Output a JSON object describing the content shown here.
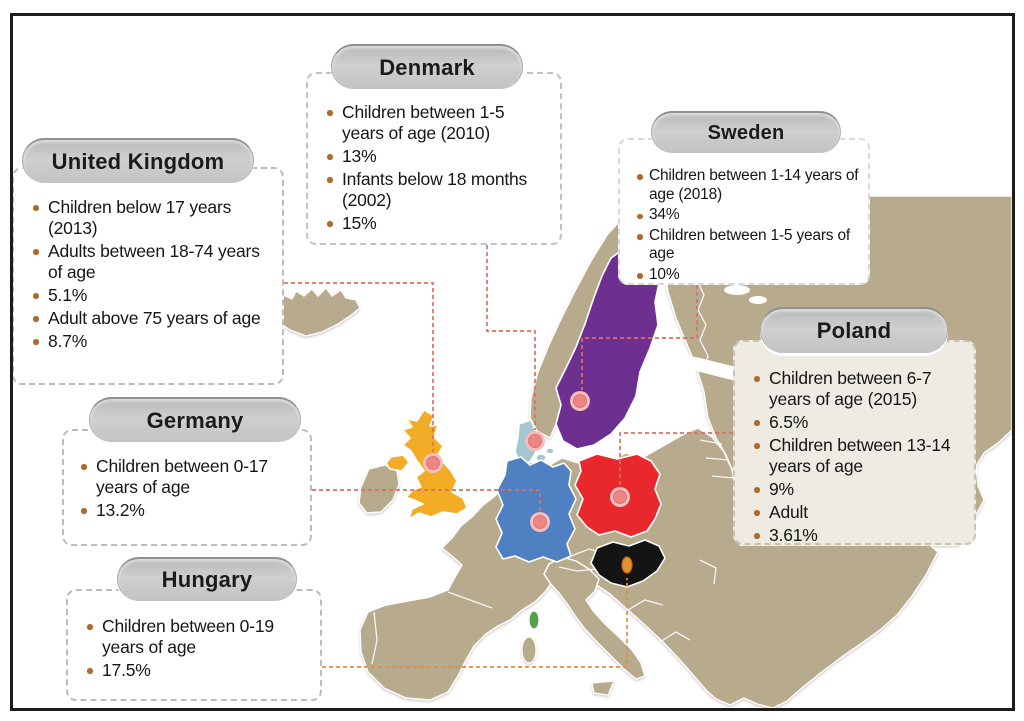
{
  "figure": {
    "background": "#ffffff",
    "frame_border_color": "#1c1c1c"
  },
  "map": {
    "colors": {
      "land": "#b8aa8c",
      "sea": "#ffffff",
      "country_border": "#ffffff",
      "united_kingdom": "#f3ac25",
      "denmark": "#a3c6d0",
      "sweden": "#6d2f90",
      "germany": "#4f80c1",
      "poland": "#e8282c",
      "hungary": "#141414",
      "corsica": "#55a04a"
    },
    "marker": {
      "ring": "#f6bdbd",
      "fill": "#ee8585",
      "edge": "#e07575",
      "hungary_fill": "#e8922f",
      "hungary_edge": "#b96a15"
    },
    "connector": {
      "default": "#dd6f61",
      "hungary": "#dc9146"
    }
  },
  "callouts": [
    {
      "id": "united-kingdom",
      "title": "United Kingdom",
      "items": [
        "Children below 17 years (2013)",
        "Adults between 18-74 years of age",
        "5.1%",
        "Adult above 75 years of age",
        "8.7%"
      ]
    },
    {
      "id": "denmark",
      "title": "Denmark",
      "items": [
        "Children between 1-5 years of age (2010)",
        "13%",
        "Infants below 18 months (2002)",
        "15%"
      ]
    },
    {
      "id": "sweden",
      "title": "Sweden",
      "items": [
        "Children between 1-14 years of age (2018)",
        "34%",
        "Children between 1-5 years of age",
        "10%"
      ]
    },
    {
      "id": "poland",
      "title": "Poland",
      "items": [
        "Children between 6-7 years of age (2015)",
        "6.5%",
        "Children between 13-14 years of age",
        "9%",
        "Adult",
        "3.61%"
      ]
    },
    {
      "id": "germany",
      "title": "Germany",
      "items": [
        "Children between 0-17 years of age",
        "13.2%"
      ]
    },
    {
      "id": "hungary",
      "title": "Hungary",
      "items": [
        "Children between 0-19 years of age",
        "17.5%"
      ]
    }
  ]
}
